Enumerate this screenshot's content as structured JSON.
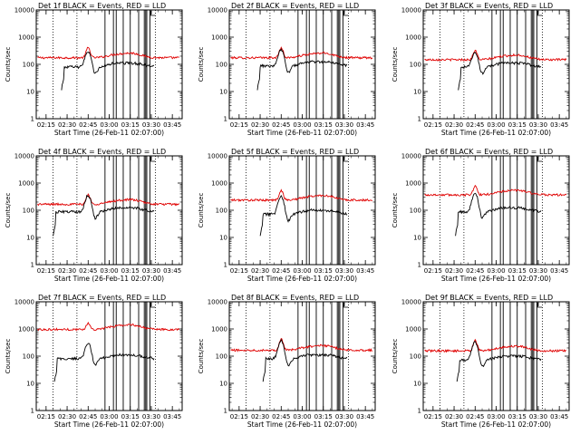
{
  "colors": {
    "events": "#000000",
    "lld": "#e00000",
    "frame": "#000000"
  },
  "x_axis": {
    "label": "Start Time (26-Feb-11 02:07:00)",
    "tick_labels": [
      "02:15",
      "02:30",
      "02:45",
      "03:00",
      "03:15",
      "03:30",
      "03:45"
    ],
    "tick_minutes": [
      15,
      30,
      45,
      60,
      75,
      90,
      105
    ],
    "xlim_minutes": [
      8,
      112
    ]
  },
  "y_axis": {
    "label": "Counts/sec",
    "scale": "log",
    "ylim": [
      1,
      10000
    ],
    "tick_values": [
      1,
      10,
      100,
      1000,
      10000
    ],
    "tick_labels": [
      "1",
      "10",
      "100",
      "1000",
      "10000"
    ]
  },
  "vertical_lines": {
    "dotted_minutes": [
      20,
      37,
      93
    ],
    "solid_minutes": [
      57,
      63,
      65,
      70,
      75,
      81,
      85,
      86,
      86.8,
      89
    ]
  },
  "chart_data": [
    {
      "type": "line",
      "title": "Det 1f BLACK = Events, RED = LLD",
      "events_scale": 0.5,
      "lld_scale": 1.0,
      "lld_peak": 2.2,
      "events_peak": 2.8,
      "events_start_minute": 26
    },
    {
      "type": "line",
      "title": "Det 2f BLACK = Events, RED = LLD",
      "events_scale": 0.55,
      "lld_scale": 1.0,
      "lld_peak": 2.2,
      "events_peak": 2.8,
      "events_start_minute": 28
    },
    {
      "type": "line",
      "title": "Det 3f BLACK = Events, RED = LLD",
      "events_scale": 0.5,
      "lld_scale": 0.85,
      "lld_peak": 1.9,
      "events_peak": 2.5,
      "events_start_minute": 33
    },
    {
      "type": "line",
      "title": "Det 4f BLACK = Events, RED = LLD",
      "events_scale": 0.55,
      "lld_scale": 0.95,
      "lld_peak": 2.1,
      "events_peak": 3.0,
      "events_start_minute": 20
    },
    {
      "type": "line",
      "title": "Det 5f BLACK = Events, RED = LLD",
      "events_scale": 0.45,
      "lld_scale": 1.35,
      "lld_peak": 2.1,
      "events_peak": 3.4,
      "events_start_minute": 30
    },
    {
      "type": "line",
      "title": "Det 6f BLACK = Events, RED = LLD",
      "events_scale": 0.55,
      "lld_scale": 2.1,
      "lld_peak": 1.8,
      "events_peak": 4.0,
      "events_start_minute": 31
    },
    {
      "type": "line",
      "title": "Det 7f BLACK = Events, RED = LLD",
      "events_scale": 0.5,
      "lld_scale": 5.5,
      "lld_peak": 1.1,
      "events_peak": 2.8,
      "events_start_minute": 21
    },
    {
      "type": "line",
      "title": "Det 8f BLACK = Events, RED = LLD",
      "events_scale": 0.5,
      "lld_scale": 0.95,
      "lld_peak": 2.5,
      "events_peak": 3.6,
      "events_start_minute": 32
    },
    {
      "type": "line",
      "title": "Det 9f BLACK = Events, RED = LLD",
      "events_scale": 0.45,
      "lld_scale": 0.9,
      "lld_peak": 2.3,
      "events_peak": 3.7,
      "events_start_minute": 32
    }
  ]
}
